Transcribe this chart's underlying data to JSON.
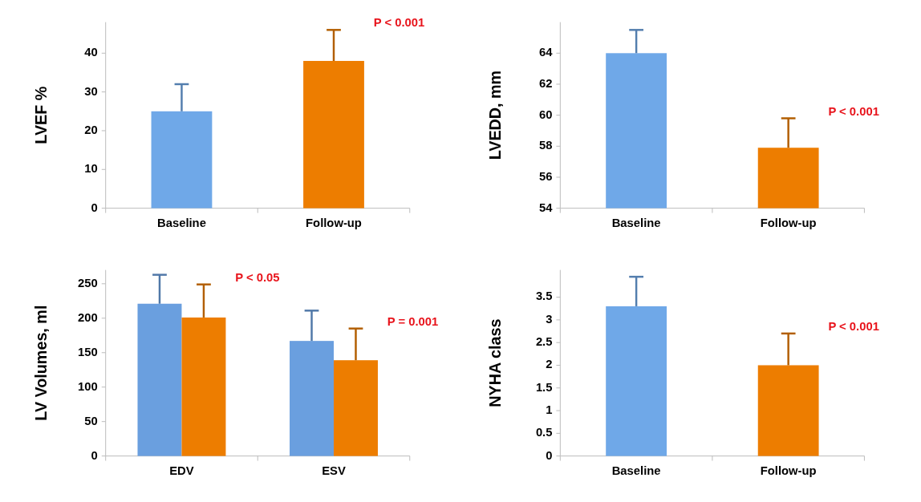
{
  "chart_data": [
    {
      "type": "bar",
      "ylabel": "LVEF %",
      "categories": [
        "Baseline",
        "Follow-up"
      ],
      "values": [
        25,
        38
      ],
      "colors": [
        "#6fa8e8",
        "#ed7d00"
      ],
      "errors": [
        7,
        8
      ],
      "ylim": [
        0,
        48
      ],
      "yticks": [
        0,
        10,
        20,
        30,
        40
      ],
      "grid": false,
      "annotations": [
        "P < 0.001"
      ]
    },
    {
      "type": "bar",
      "ylabel": "LVEDD, mm",
      "categories": [
        "Baseline",
        "Follow-up"
      ],
      "values": [
        64,
        57.9
      ],
      "colors": [
        "#6fa8e8",
        "#ed7d00"
      ],
      "errors": [
        1.5,
        1.9
      ],
      "ylim": [
        54,
        66
      ],
      "yticks": [
        54,
        56,
        58,
        60,
        62,
        64
      ],
      "grid": false,
      "annotations": [
        "P < 0.001"
      ]
    },
    {
      "type": "bar",
      "ylabel": "LV Volumes,  ml",
      "categories": [
        "EDV",
        "ESV"
      ],
      "series": [
        {
          "color": "#6a9fdf",
          "values": [
            221,
            167
          ],
          "errors": [
            42,
            44
          ]
        },
        {
          "color": "#ed7d00",
          "values": [
            201,
            139
          ],
          "errors": [
            48,
            46
          ]
        }
      ],
      "ylim": [
        0,
        270
      ],
      "yticks": [
        0,
        50,
        100,
        150,
        200,
        250
      ],
      "grid": false,
      "annotations": [
        "P < 0.05",
        "P = 0.001"
      ]
    },
    {
      "type": "bar",
      "ylabel": "NYHA class",
      "categories": [
        "Baseline",
        "Follow-up"
      ],
      "values": [
        3.3,
        2.0
      ],
      "colors": [
        "#6fa8e8",
        "#ed7d00"
      ],
      "errors": [
        0.65,
        0.7
      ],
      "ylim": [
        0,
        4.1
      ],
      "yticks": [
        0,
        0.5,
        1,
        1.5,
        2,
        2.5,
        3,
        3.5
      ],
      "grid": false,
      "annotations": [
        "P < 0.001"
      ]
    }
  ]
}
